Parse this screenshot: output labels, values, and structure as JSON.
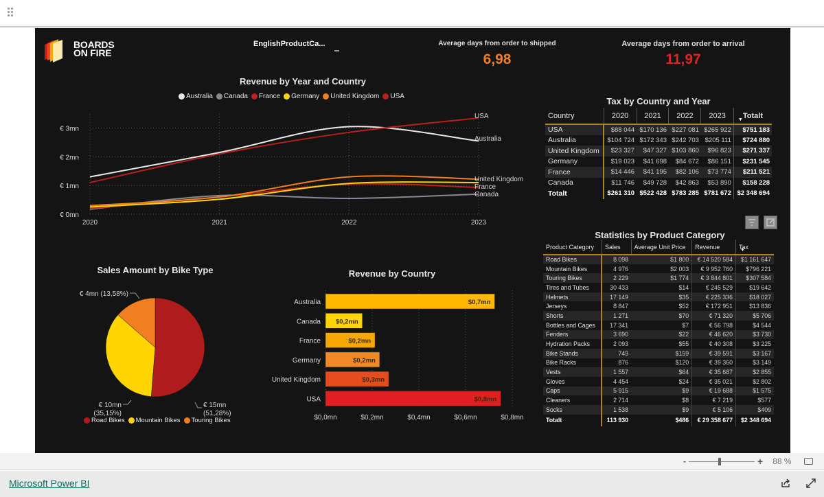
{
  "app": {
    "name": "Microsoft Power BI",
    "zoom_label": "88 %",
    "zoom_minus": "-",
    "zoom_plus": "+",
    "zoom_percent": 88
  },
  "header": {
    "logo_line1": "BOARDS",
    "logo_line2": "ON FIRE",
    "slicer_title": "EnglishProductCa...",
    "kpi_shipped": {
      "label": "Average days from order to shipped",
      "value": "6,98",
      "color": "#f07f22"
    },
    "kpi_arrival": {
      "label": "Average days from order to arrival",
      "value": "11,97",
      "color": "#e52222"
    }
  },
  "colors": {
    "Australia": "#e8e8e8",
    "Canada": "#8a8a96",
    "France": "#c0201e",
    "Germany": "#ffd400",
    "United Kingdom": "#f07f22",
    "USA": "#b5201e"
  },
  "chart_data": [
    {
      "id": "revenue_line",
      "type": "line",
      "title": "Revenue by Year and Country",
      "x": [
        "2020",
        "2021",
        "2022",
        "2023"
      ],
      "ylim": [
        0,
        3.3
      ],
      "yticks": [
        0,
        1,
        2,
        3
      ],
      "ytick_labels": [
        "€ 0mn",
        "€ 1mn",
        "€ 2mn",
        "€ 3mn"
      ],
      "grid": true,
      "legend_position": "top",
      "series": [
        {
          "name": "Australia",
          "values": [
            1.3,
            2.15,
            3.05,
            2.55
          ],
          "end_label": "Australia"
        },
        {
          "name": "Canada",
          "values": [
            0.17,
            0.65,
            0.55,
            0.7
          ],
          "end_label": "Canada"
        },
        {
          "name": "France",
          "values": [
            0.2,
            0.6,
            1.05,
            0.93
          ],
          "end_label": "France"
        },
        {
          "name": "Germany",
          "values": [
            0.25,
            0.52,
            1.07,
            1.1
          ],
          "end_label": ""
        },
        {
          "name": "United Kingdom",
          "values": [
            0.3,
            0.6,
            1.3,
            1.22
          ],
          "end_label": "United Kingdom"
        },
        {
          "name": "USA",
          "values": [
            1.1,
            2.1,
            2.85,
            3.35
          ],
          "end_label": "USA"
        }
      ]
    },
    {
      "id": "bike_pie",
      "type": "pie",
      "title": "Sales Amount by Bike Type",
      "legend_position": "bottom",
      "slices": [
        {
          "name": "Road Bikes",
          "value": 15,
          "percent": 51.28,
          "label1": "€ 15mn",
          "label2": "(51,28%)",
          "color": "#b01c1c"
        },
        {
          "name": "Mountain Bikes",
          "value": 10,
          "percent": 35.15,
          "label1": "€ 10mn",
          "label2": "(35,15%)",
          "color": "#ffd400"
        },
        {
          "name": "Touring Bikes",
          "value": 4,
          "percent": 13.58,
          "label1": "€ 4mn (13,58%)",
          "label2": "",
          "color": "#f07f22"
        }
      ]
    },
    {
      "id": "revenue_bar",
      "type": "bar",
      "title": "Revenue by Country",
      "categories": [
        "Australia",
        "Canada",
        "France",
        "Germany",
        "United Kingdom",
        "USA"
      ],
      "values": [
        0.725,
        0.158,
        0.212,
        0.232,
        0.271,
        0.751
      ],
      "data_labels": [
        "$0,7mn",
        "$0,2mn",
        "$0,2mn",
        "$0,2mn",
        "$0,3mn",
        "$0,8mn"
      ],
      "bar_colors": [
        "#ffb800",
        "#ffd400",
        "#f5a800",
        "#f08a28",
        "#e54d1e",
        "#e02020"
      ],
      "xlim": [
        0,
        0.8
      ],
      "xticks": [
        0,
        0.2,
        0.4,
        0.6,
        0.8
      ],
      "xtick_labels": [
        "$0,0mn",
        "$0,2mn",
        "$0,4mn",
        "$0,6mn",
        "$0,8mn"
      ],
      "grid": true
    }
  ],
  "tax_table": {
    "title": "Tax by Country and Year",
    "columns": [
      "Country",
      "2020",
      "2021",
      "2022",
      "2023",
      "Totalt"
    ],
    "rows": [
      [
        "USA",
        "$88 044",
        "$170 136",
        "$227 081",
        "$265 922",
        "$751 183"
      ],
      [
        "Australia",
        "$104 724",
        "$172 343",
        "$242 703",
        "$205 111",
        "$724 880"
      ],
      [
        "United Kingdom",
        "$23 327",
        "$47 327",
        "$103 860",
        "$96 823",
        "$271 337"
      ],
      [
        "Germany",
        "$19 023",
        "$41 698",
        "$84 672",
        "$86 151",
        "$231 545"
      ],
      [
        "France",
        "$14 446",
        "$41 195",
        "$82 106",
        "$73 774",
        "$211 521"
      ],
      [
        "Canada",
        "$11 746",
        "$49 728",
        "$42 863",
        "$53 890",
        "$158 228"
      ]
    ],
    "total": [
      "Totalt",
      "$261 310",
      "$522 428",
      "$783 285",
      "$781 672",
      "$2 348 694"
    ]
  },
  "stat_table": {
    "title": "Statistics by Product Category",
    "columns": [
      "Product Category",
      "Sales",
      "Average Unit Price",
      "Revenue",
      "Tax"
    ],
    "rows": [
      [
        "Road Bikes",
        "8 098",
        "$1 800",
        "€ 14 520 584",
        "$1 161 647"
      ],
      [
        "Mountain Bikes",
        "4 976",
        "$2 003",
        "€ 9 952 760",
        "$796 221"
      ],
      [
        "Touring Bikes",
        "2 229",
        "$1 774",
        "€ 3 844 801",
        "$307 584"
      ],
      [
        "Tires and Tubes",
        "30 433",
        "$14",
        "€ 245 529",
        "$19 642"
      ],
      [
        "Helmets",
        "17 149",
        "$35",
        "€ 225 336",
        "$18 027"
      ],
      [
        "Jerseys",
        "8 847",
        "$52",
        "€ 172 951",
        "$13 836"
      ],
      [
        "Shorts",
        "1 271",
        "$70",
        "€ 71 320",
        "$5 706"
      ],
      [
        "Bottles and Cages",
        "17 341",
        "$7",
        "€ 56 798",
        "$4 544"
      ],
      [
        "Fenders",
        "3 690",
        "$22",
        "€ 46 620",
        "$3 730"
      ],
      [
        "Hydration Packs",
        "2 093",
        "$55",
        "€ 40 308",
        "$3 225"
      ],
      [
        "Bike Stands",
        "749",
        "$159",
        "€ 39 591",
        "$3 167"
      ],
      [
        "Bike Racks",
        "876",
        "$120",
        "€ 39 360",
        "$3 149"
      ],
      [
        "Vests",
        "1 557",
        "$64",
        "€ 35 687",
        "$2 855"
      ],
      [
        "Gloves",
        "4 454",
        "$24",
        "€ 35 021",
        "$2 802"
      ],
      [
        "Caps",
        "5 915",
        "$9",
        "€ 19 688",
        "$1 575"
      ],
      [
        "Cleaners",
        "2 714",
        "$8",
        "€ 7 219",
        "$577"
      ],
      [
        "Socks",
        "1 538",
        "$9",
        "€ 5 106",
        "$409"
      ]
    ],
    "total": [
      "Totalt",
      "113 930",
      "$486",
      "€ 29 358 677",
      "$2 348 694"
    ]
  }
}
